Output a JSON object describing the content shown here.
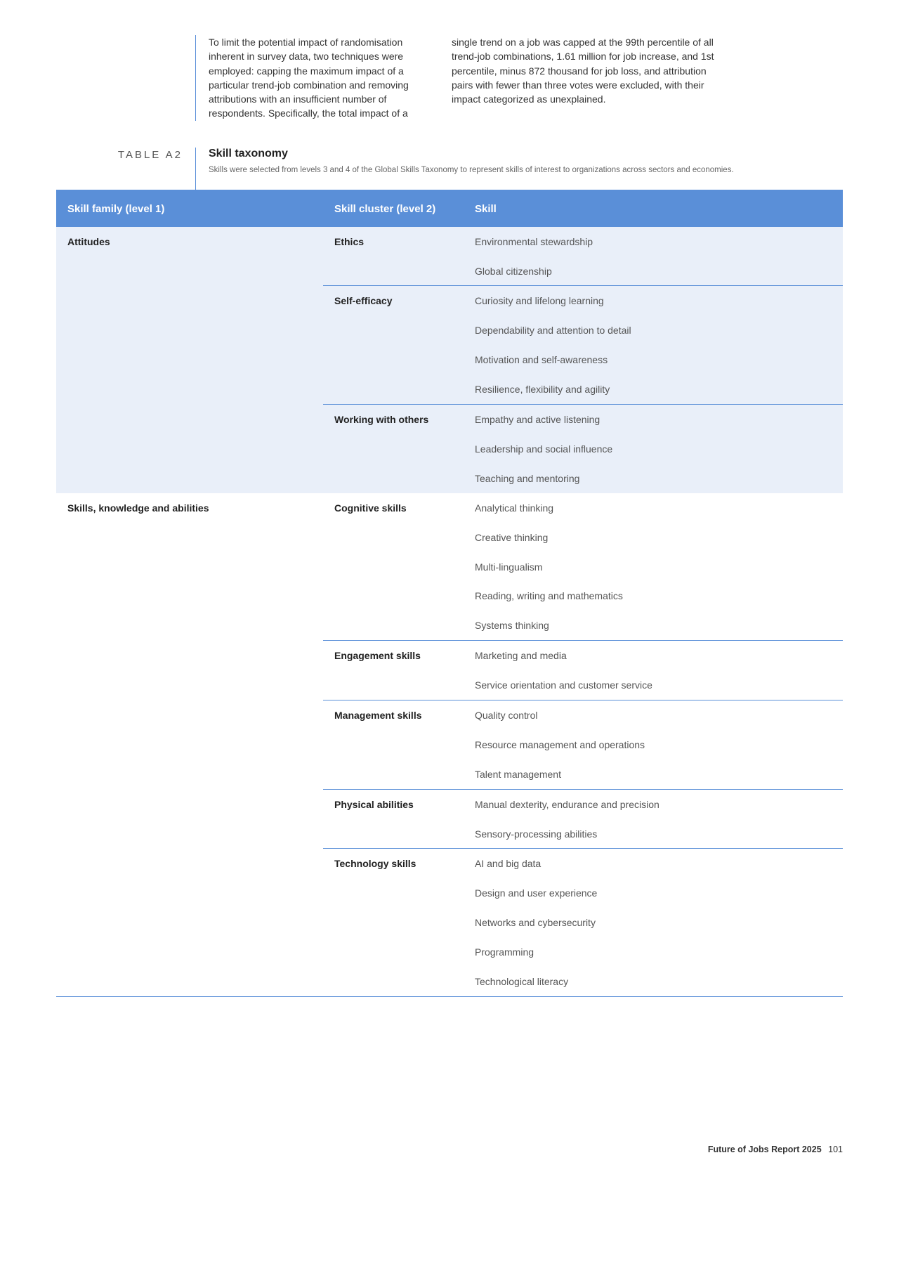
{
  "intro": {
    "left": "To limit the potential impact of randomisation inherent in survey data, two techniques were employed: capping the maximum impact of a particular trend-job combination and removing attributions with an insufficient number of respondents. Specifically, the total impact of a",
    "right": "single trend on a job was capped at the 99th percentile of all trend-job combinations, 1.61 million for job increase, and 1st percentile, minus 872 thousand for job loss, and attribution pairs with fewer than three votes were excluded, with their impact categorized as unexplained."
  },
  "table_label": "TABLE A2",
  "table_title": "Skill taxonomy",
  "table_caption": "Skills were selected from levels 3 and 4 of the Global Skills Taxonomy to represent skills of interest to organizations across sectors and economies.",
  "headers": {
    "family": "Skill family (level 1)",
    "cluster": "Skill cluster (level 2)",
    "skill": "Skill"
  },
  "families": [
    {
      "name": "Attitudes",
      "row_class": "row-attitudes",
      "clusters": [
        {
          "name": "Ethics",
          "skills": [
            "Environmental stewardship",
            "Global citizenship"
          ]
        },
        {
          "name": "Self-efficacy",
          "skills": [
            "Curiosity and lifelong learning",
            "Dependability and attention to detail",
            "Motivation and self-awareness",
            "Resilience, flexibility and agility"
          ]
        },
        {
          "name": "Working with others",
          "skills": [
            "Empathy and active listening",
            "Leadership and social influence",
            "Teaching and mentoring"
          ]
        }
      ]
    },
    {
      "name": "Skills, knowledge and abilities",
      "row_class": "row-ska",
      "clusters": [
        {
          "name": "Cognitive skills",
          "skills": [
            "Analytical thinking",
            "Creative thinking",
            "Multi-lingualism",
            "Reading, writing and mathematics",
            "Systems thinking"
          ]
        },
        {
          "name": "Engagement skills",
          "skills": [
            "Marketing and media",
            "Service orientation and customer service"
          ]
        },
        {
          "name": "Management skills",
          "skills": [
            "Quality control",
            "Resource management and operations",
            "Talent management"
          ]
        },
        {
          "name": "Physical abilities",
          "skills": [
            "Manual dexterity, endurance and precision",
            "Sensory-processing abilities"
          ]
        },
        {
          "name": "Technology skills",
          "skills": [
            "AI and big data",
            "Design and user experience",
            "Networks and cybersecurity",
            "Programming",
            "Technological literacy"
          ]
        }
      ]
    }
  ],
  "footer": {
    "title": "Future of Jobs Report 2025",
    "page": "101"
  },
  "colors": {
    "accent": "#5a8fd8",
    "attitudes_bg": "#e9eff9",
    "ska_bg": "#ffffff",
    "header_text": "#ffffff",
    "body_text": "#333333",
    "skill_text": "#555555"
  }
}
